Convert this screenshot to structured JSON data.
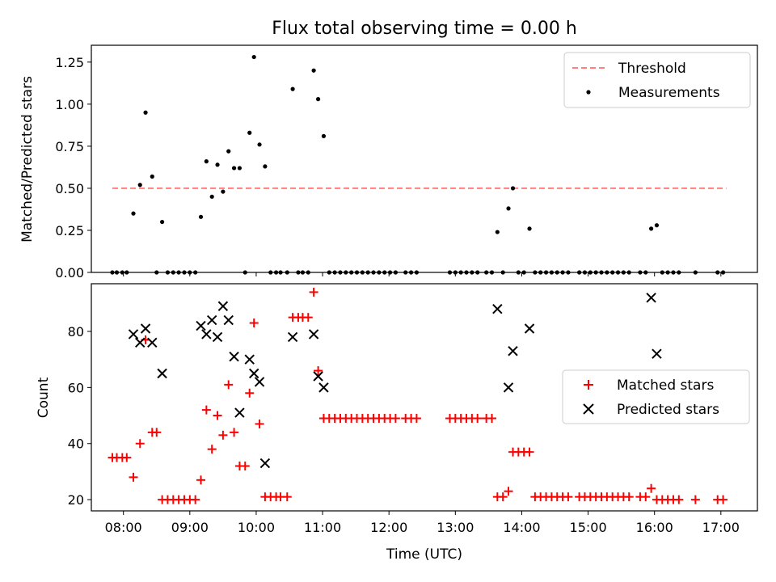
{
  "chart_data": [
    {
      "type": "scatter",
      "title": "Flux total observing time = 0.00 h",
      "ylabel": "Matched/Predicted stars",
      "xlabel": "",
      "xlim": [
        "07:31",
        "17:33"
      ],
      "ylim": [
        0,
        1.35
      ],
      "yticks": [
        "0.00",
        "0.25",
        "0.50",
        "0.75",
        "1.00",
        "1.25"
      ],
      "grid": false,
      "legend_position": "top-right",
      "threshold": {
        "name": "Threshold",
        "value": 0.5,
        "x_start": "07:50",
        "x_end": "17:05",
        "color": "#ff7f7f"
      },
      "series": [
        {
          "name": "Measurements",
          "color": "#000000",
          "points": [
            [
              "07:50",
              0
            ],
            [
              "07:54",
              0
            ],
            [
              "07:59",
              0
            ],
            [
              "08:03",
              0
            ],
            [
              "08:09",
              0.35
            ],
            [
              "08:15",
              0.52
            ],
            [
              "08:20",
              0.95
            ],
            [
              "08:26",
              0.57
            ],
            [
              "08:30",
              0
            ],
            [
              "08:35",
              0.3
            ],
            [
              "08:40",
              0
            ],
            [
              "08:45",
              0
            ],
            [
              "08:50",
              0
            ],
            [
              "08:55",
              0
            ],
            [
              "09:00",
              0
            ],
            [
              "09:05",
              0
            ],
            [
              "09:10",
              0.33
            ],
            [
              "09:15",
              0.66
            ],
            [
              "09:20",
              0.45
            ],
            [
              "09:25",
              0.64
            ],
            [
              "09:30",
              0.48
            ],
            [
              "09:35",
              0.72
            ],
            [
              "09:40",
              0.62
            ],
            [
              "09:45",
              0.62
            ],
            [
              "09:50",
              0
            ],
            [
              "09:54",
              0.83
            ],
            [
              "09:58",
              1.28
            ],
            [
              "10:03",
              0.76
            ],
            [
              "10:08",
              0.63
            ],
            [
              "10:13",
              0
            ],
            [
              "10:18",
              0
            ],
            [
              "10:22",
              0
            ],
            [
              "10:28",
              0
            ],
            [
              "10:33",
              1.09
            ],
            [
              "10:38",
              0
            ],
            [
              "10:42",
              0
            ],
            [
              "10:47",
              0
            ],
            [
              "10:52",
              1.2
            ],
            [
              "10:56",
              1.03
            ],
            [
              "11:01",
              0.81
            ],
            [
              "11:06",
              0
            ],
            [
              "11:11",
              0
            ],
            [
              "11:16",
              0
            ],
            [
              "11:21",
              0
            ],
            [
              "11:26",
              0
            ],
            [
              "11:31",
              0
            ],
            [
              "11:36",
              0
            ],
            [
              "11:41",
              0
            ],
            [
              "11:46",
              0
            ],
            [
              "11:51",
              0
            ],
            [
              "11:56",
              0
            ],
            [
              "12:01",
              0
            ],
            [
              "12:06",
              0
            ],
            [
              "12:15",
              0
            ],
            [
              "12:20",
              0
            ],
            [
              "12:25",
              0
            ],
            [
              "12:55",
              0
            ],
            [
              "13:00",
              0
            ],
            [
              "13:05",
              0
            ],
            [
              "13:10",
              0
            ],
            [
              "13:15",
              0
            ],
            [
              "13:20",
              0
            ],
            [
              "13:28",
              0
            ],
            [
              "13:33",
              0
            ],
            [
              "13:38",
              0.24
            ],
            [
              "13:43",
              0
            ],
            [
              "13:48",
              0.38
            ],
            [
              "13:52",
              0.5
            ],
            [
              "13:57",
              0
            ],
            [
              "14:02",
              0
            ],
            [
              "14:07",
              0.26
            ],
            [
              "14:12",
              0
            ],
            [
              "14:17",
              0
            ],
            [
              "14:22",
              0
            ],
            [
              "14:27",
              0
            ],
            [
              "14:32",
              0
            ],
            [
              "14:37",
              0
            ],
            [
              "14:42",
              0
            ],
            [
              "14:52",
              0
            ],
            [
              "14:57",
              0
            ],
            [
              "15:02",
              0
            ],
            [
              "15:07",
              0
            ],
            [
              "15:12",
              0
            ],
            [
              "15:17",
              0
            ],
            [
              "15:22",
              0
            ],
            [
              "15:27",
              0
            ],
            [
              "15:32",
              0
            ],
            [
              "15:37",
              0
            ],
            [
              "15:47",
              0
            ],
            [
              "15:52",
              0
            ],
            [
              "15:57",
              0.26
            ],
            [
              "16:02",
              0.28
            ],
            [
              "16:07",
              0
            ],
            [
              "16:12",
              0
            ],
            [
              "16:17",
              0
            ],
            [
              "16:22",
              0
            ],
            [
              "16:37",
              0
            ],
            [
              "16:57",
              0
            ],
            [
              "17:02",
              0
            ]
          ]
        }
      ]
    },
    {
      "type": "scatter",
      "title": "",
      "xlabel": "Time (UTC)",
      "ylabel": "Count",
      "xlim": [
        "07:31",
        "17:33"
      ],
      "ylim": [
        16,
        97
      ],
      "xticks": [
        "08:00",
        "09:00",
        "10:00",
        "11:00",
        "12:00",
        "13:00",
        "14:00",
        "15:00",
        "16:00",
        "17:00"
      ],
      "yticks": [
        "20",
        "40",
        "60",
        "80"
      ],
      "grid": false,
      "legend_position": "center-right",
      "series": [
        {
          "name": "Matched stars",
          "marker": "+",
          "color": "#ff0000",
          "points": [
            [
              "07:50",
              35
            ],
            [
              "07:54",
              35
            ],
            [
              "07:59",
              35
            ],
            [
              "08:03",
              35
            ],
            [
              "08:09",
              28
            ],
            [
              "08:15",
              40
            ],
            [
              "08:20",
              77
            ],
            [
              "08:26",
              44
            ],
            [
              "08:30",
              44
            ],
            [
              "08:35",
              20
            ],
            [
              "08:40",
              20
            ],
            [
              "08:45",
              20
            ],
            [
              "08:50",
              20
            ],
            [
              "08:55",
              20
            ],
            [
              "09:00",
              20
            ],
            [
              "09:05",
              20
            ],
            [
              "09:10",
              27
            ],
            [
              "09:15",
              52
            ],
            [
              "09:20",
              38
            ],
            [
              "09:25",
              50
            ],
            [
              "09:30",
              43
            ],
            [
              "09:35",
              61
            ],
            [
              "09:40",
              44
            ],
            [
              "09:45",
              32
            ],
            [
              "09:50",
              32
            ],
            [
              "09:54",
              58
            ],
            [
              "09:58",
              83
            ],
            [
              "10:03",
              47
            ],
            [
              "10:08",
              21
            ],
            [
              "10:13",
              21
            ],
            [
              "10:18",
              21
            ],
            [
              "10:22",
              21
            ],
            [
              "10:28",
              21
            ],
            [
              "10:33",
              85
            ],
            [
              "10:38",
              85
            ],
            [
              "10:42",
              85
            ],
            [
              "10:47",
              85
            ],
            [
              "10:52",
              94
            ],
            [
              "10:56",
              66
            ],
            [
              "11:01",
              49
            ],
            [
              "11:06",
              49
            ],
            [
              "11:11",
              49
            ],
            [
              "11:16",
              49
            ],
            [
              "11:21",
              49
            ],
            [
              "11:26",
              49
            ],
            [
              "11:31",
              49
            ],
            [
              "11:36",
              49
            ],
            [
              "11:41",
              49
            ],
            [
              "11:46",
              49
            ],
            [
              "11:51",
              49
            ],
            [
              "11:56",
              49
            ],
            [
              "12:01",
              49
            ],
            [
              "12:06",
              49
            ],
            [
              "12:15",
              49
            ],
            [
              "12:20",
              49
            ],
            [
              "12:25",
              49
            ],
            [
              "12:55",
              49
            ],
            [
              "13:00",
              49
            ],
            [
              "13:05",
              49
            ],
            [
              "13:10",
              49
            ],
            [
              "13:15",
              49
            ],
            [
              "13:20",
              49
            ],
            [
              "13:28",
              49
            ],
            [
              "13:33",
              49
            ],
            [
              "13:38",
              21
            ],
            [
              "13:43",
              21
            ],
            [
              "13:48",
              23
            ],
            [
              "13:52",
              37
            ],
            [
              "13:57",
              37
            ],
            [
              "14:02",
              37
            ],
            [
              "14:07",
              37
            ],
            [
              "14:12",
              21
            ],
            [
              "14:17",
              21
            ],
            [
              "14:22",
              21
            ],
            [
              "14:27",
              21
            ],
            [
              "14:32",
              21
            ],
            [
              "14:37",
              21
            ],
            [
              "14:42",
              21
            ],
            [
              "14:52",
              21
            ],
            [
              "14:57",
              21
            ],
            [
              "15:02",
              21
            ],
            [
              "15:07",
              21
            ],
            [
              "15:12",
              21
            ],
            [
              "15:17",
              21
            ],
            [
              "15:22",
              21
            ],
            [
              "15:27",
              21
            ],
            [
              "15:32",
              21
            ],
            [
              "15:37",
              21
            ],
            [
              "15:47",
              21
            ],
            [
              "15:52",
              21
            ],
            [
              "15:57",
              24
            ],
            [
              "16:02",
              20
            ],
            [
              "16:07",
              20
            ],
            [
              "16:12",
              20
            ],
            [
              "16:17",
              20
            ],
            [
              "16:22",
              20
            ],
            [
              "16:37",
              20
            ],
            [
              "16:57",
              20
            ],
            [
              "17:02",
              20
            ]
          ]
        },
        {
          "name": "Predicted stars",
          "marker": "x",
          "color": "#000000",
          "points": [
            [
              "08:09",
              79
            ],
            [
              "08:15",
              76
            ],
            [
              "08:20",
              81
            ],
            [
              "08:26",
              76
            ],
            [
              "08:35",
              65
            ],
            [
              "09:10",
              82
            ],
            [
              "09:15",
              79
            ],
            [
              "09:20",
              84
            ],
            [
              "09:25",
              78
            ],
            [
              "09:30",
              89
            ],
            [
              "09:35",
              84
            ],
            [
              "09:40",
              71
            ],
            [
              "09:45",
              51
            ],
            [
              "09:54",
              70
            ],
            [
              "09:58",
              65
            ],
            [
              "10:03",
              62
            ],
            [
              "10:08",
              33
            ],
            [
              "10:33",
              78
            ],
            [
              "10:52",
              79
            ],
            [
              "10:56",
              64
            ],
            [
              "11:01",
              60
            ],
            [
              "13:38",
              88
            ],
            [
              "13:48",
              60
            ],
            [
              "13:52",
              73
            ],
            [
              "14:07",
              81
            ],
            [
              "15:57",
              92
            ],
            [
              "16:02",
              72
            ]
          ]
        }
      ]
    }
  ]
}
